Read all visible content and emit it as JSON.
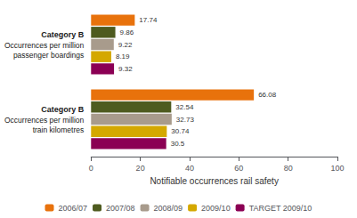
{
  "chart_data": {
    "type": "bar",
    "orientation": "horizontal",
    "categories": [
      "Category B\nOccurrences per million\npassenger boardings",
      "Category B\nOccurrences per million\ntrain kilometres"
    ],
    "series": [
      {
        "name": "2006/07",
        "color": "#E8720C",
        "values": [
          17.74,
          66.08
        ]
      },
      {
        "name": "2007/08",
        "color": "#4E5B1F",
        "values": [
          9.86,
          32.54
        ]
      },
      {
        "name": "2008/09",
        "color": "#A89B8C",
        "values": [
          9.22,
          32.73
        ]
      },
      {
        "name": "2009/10",
        "color": "#D4A800",
        "values": [
          8.19,
          30.74
        ]
      },
      {
        "name": "TARGET 2009/10",
        "color": "#8B0054",
        "values": [
          9.32,
          30.5
        ]
      }
    ],
    "xlabel": "Notiﬁable occurrences rail safety",
    "xlim": [
      0,
      100
    ],
    "xticks": [
      0,
      20,
      40,
      60,
      80,
      100
    ],
    "data_labels": true,
    "legend": "bottom",
    "grid": false
  }
}
